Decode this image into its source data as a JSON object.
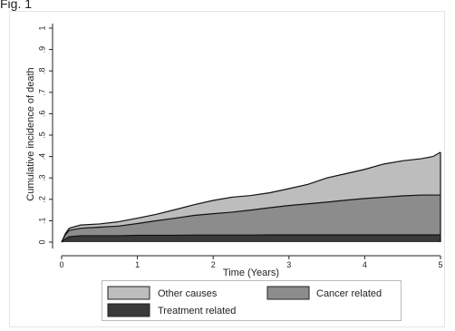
{
  "figure_label": "Fig. 1",
  "chart_data": {
    "type": "area",
    "title": "",
    "xlabel": "Time (Years)",
    "ylabel": "Cumulative incidence of death",
    "xlim": [
      0,
      5
    ],
    "ylim": [
      0,
      1
    ],
    "x_ticks": [
      "0",
      "1",
      "2",
      "3",
      "4",
      "5"
    ],
    "y_ticks": [
      "0",
      ".1",
      ".2",
      ".3",
      ".4",
      ".5",
      ".6",
      ".7",
      ".8",
      ".9",
      "1"
    ],
    "grid": false,
    "legend_position": "bottom",
    "stacked": true,
    "x": [
      0,
      0.05,
      0.1,
      0.25,
      0.5,
      0.75,
      1.0,
      1.25,
      1.5,
      1.75,
      2.0,
      2.25,
      2.5,
      2.75,
      3.0,
      3.25,
      3.5,
      3.75,
      4.0,
      4.25,
      4.5,
      4.75,
      4.9,
      5.0
    ],
    "series": [
      {
        "name": "Treatment related",
        "color": "#3a3a3a",
        "values": [
          0,
          0.015,
          0.025,
          0.03,
          0.03,
          0.03,
          0.032,
          0.032,
          0.032,
          0.033,
          0.033,
          0.033,
          0.033,
          0.034,
          0.034,
          0.034,
          0.034,
          0.034,
          0.034,
          0.034,
          0.034,
          0.034,
          0.034,
          0.034
        ]
      },
      {
        "name": "Cancer related",
        "color": "#8c8c8c",
        "values": [
          0,
          0.02,
          0.03,
          0.035,
          0.04,
          0.045,
          0.055,
          0.068,
          0.08,
          0.092,
          0.1,
          0.107,
          0.117,
          0.127,
          0.137,
          0.145,
          0.153,
          0.162,
          0.17,
          0.176,
          0.182,
          0.186,
          0.186,
          0.186
        ]
      },
      {
        "name": "Other causes",
        "color": "#bdbdbd",
        "values": [
          0,
          0.005,
          0.01,
          0.015,
          0.015,
          0.02,
          0.025,
          0.03,
          0.04,
          0.05,
          0.062,
          0.07,
          0.068,
          0.07,
          0.079,
          0.091,
          0.113,
          0.124,
          0.136,
          0.155,
          0.164,
          0.17,
          0.18,
          0.2
        ]
      }
    ],
    "legend": [
      {
        "label": "Other causes",
        "series": 2
      },
      {
        "label": "Cancer related",
        "series": 1
      },
      {
        "label": "Treatment related",
        "series": 0
      }
    ]
  }
}
